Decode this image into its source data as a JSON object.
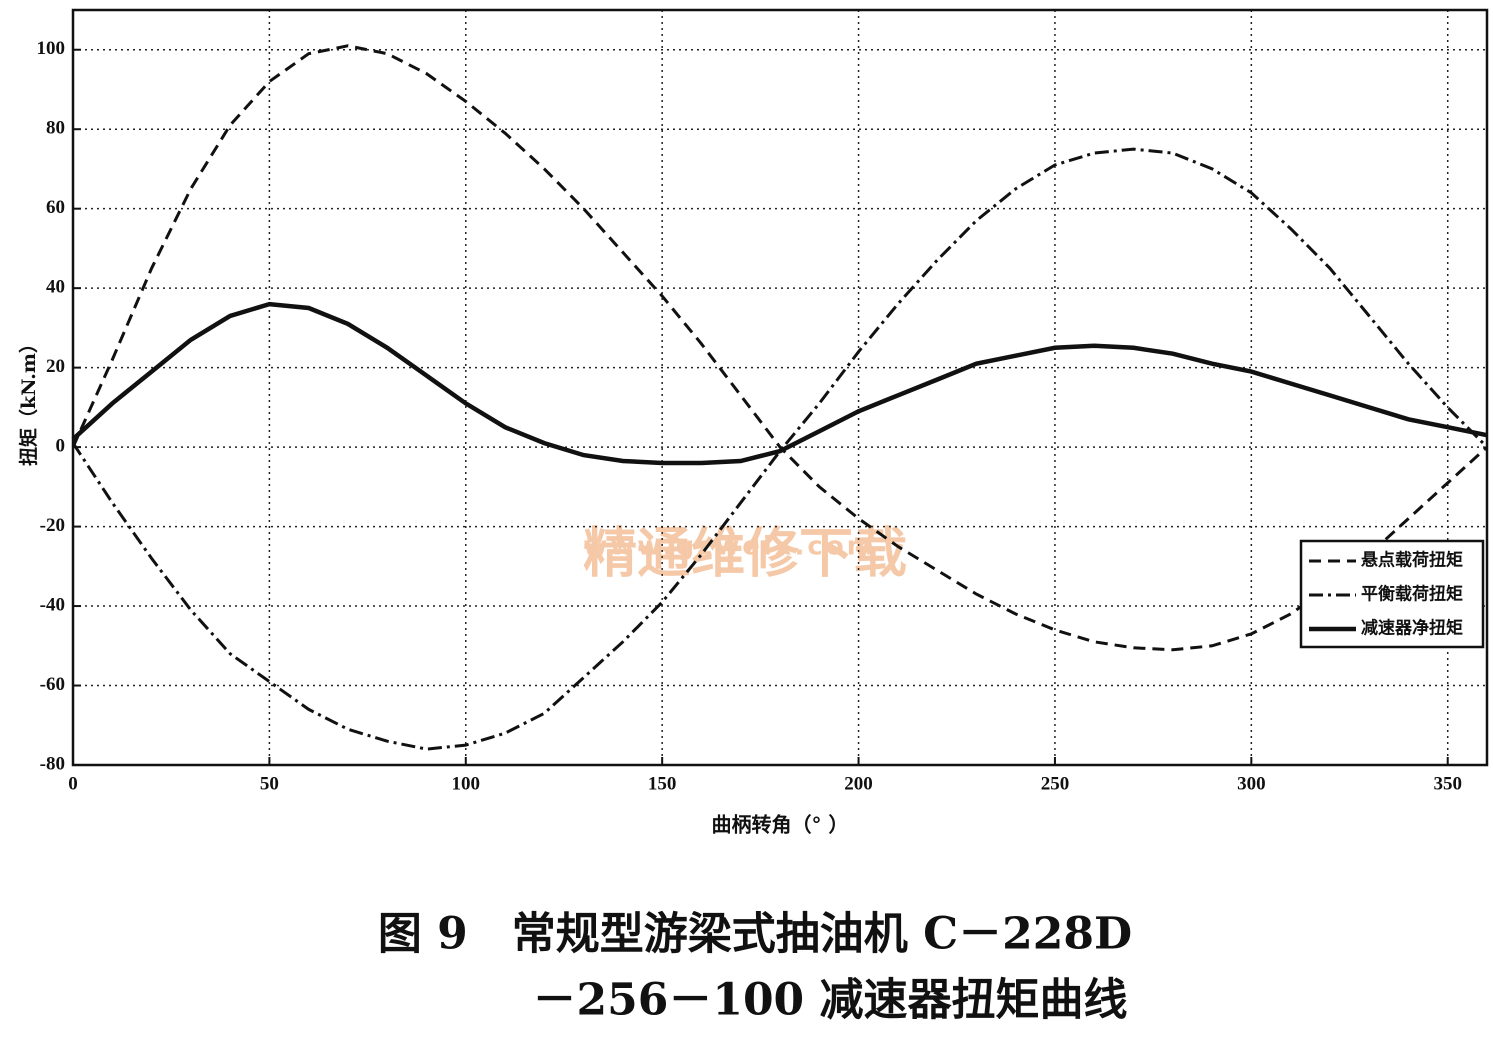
{
  "chart_data": {
    "type": "line",
    "x": [
      0,
      10,
      20,
      30,
      40,
      50,
      60,
      70,
      80,
      90,
      100,
      110,
      120,
      130,
      140,
      150,
      160,
      170,
      180,
      190,
      200,
      210,
      220,
      230,
      240,
      250,
      260,
      270,
      280,
      290,
      300,
      310,
      320,
      330,
      340,
      350,
      360
    ],
    "series": [
      {
        "name": "悬点载荷扭矩",
        "color": "#111111",
        "dash": "dashed",
        "values": [
          0,
          22,
          45,
          65,
          81,
          92,
          99,
          101,
          99,
          94,
          87,
          79,
          70,
          60,
          49,
          38,
          26,
          13,
          0,
          -10,
          -18,
          -25,
          -31,
          -37,
          -42,
          -46,
          -49,
          -50.5,
          -51,
          -50,
          -47,
          -42,
          -35,
          -27,
          -18,
          -9,
          0
        ]
      },
      {
        "name": "平衡载荷扭矩",
        "color": "#111111",
        "dash": "dashdot",
        "values": [
          1,
          -14,
          -28,
          -41,
          -52,
          -59,
          -66,
          -71,
          -74,
          -76,
          -75,
          -72,
          -67,
          -58,
          -49,
          -39,
          -27,
          -14,
          -1,
          11,
          24,
          36,
          47,
          57,
          65,
          71,
          74,
          75,
          74,
          70,
          64,
          55,
          45,
          33,
          21,
          10,
          0
        ]
      },
      {
        "name": "减速器净扭矩",
        "color": "#111111",
        "dash": "solid",
        "values": [
          2,
          11,
          19,
          27,
          33,
          36,
          35,
          31,
          25,
          18,
          11,
          5,
          1,
          -2,
          -3.5,
          -4,
          -4,
          -3.5,
          -1,
          4,
          9,
          13,
          17,
          21,
          23,
          25,
          25.5,
          25,
          23.5,
          21,
          19,
          16,
          13,
          10,
          7,
          5,
          3
        ]
      }
    ],
    "xlim": [
      0,
      360
    ],
    "ylim": [
      -80,
      110
    ],
    "xticks": [
      0,
      50,
      100,
      150,
      200,
      250,
      300,
      350
    ],
    "yticks": [
      -80,
      -60,
      -40,
      -20,
      0,
      20,
      40,
      60,
      80,
      100
    ],
    "grid": true,
    "legend": "lower right",
    "xlabel": "曲柄转角（°  ）",
    "ylabel": "扭矩（kN.m）",
    "caption": [
      "图 9　常规型游梁式抽油机 C－228D",
      "－256－100 减速器扭矩曲线"
    ],
    "watermark": [
      "精通维修下载",
      "www.gzweix.com"
    ]
  }
}
